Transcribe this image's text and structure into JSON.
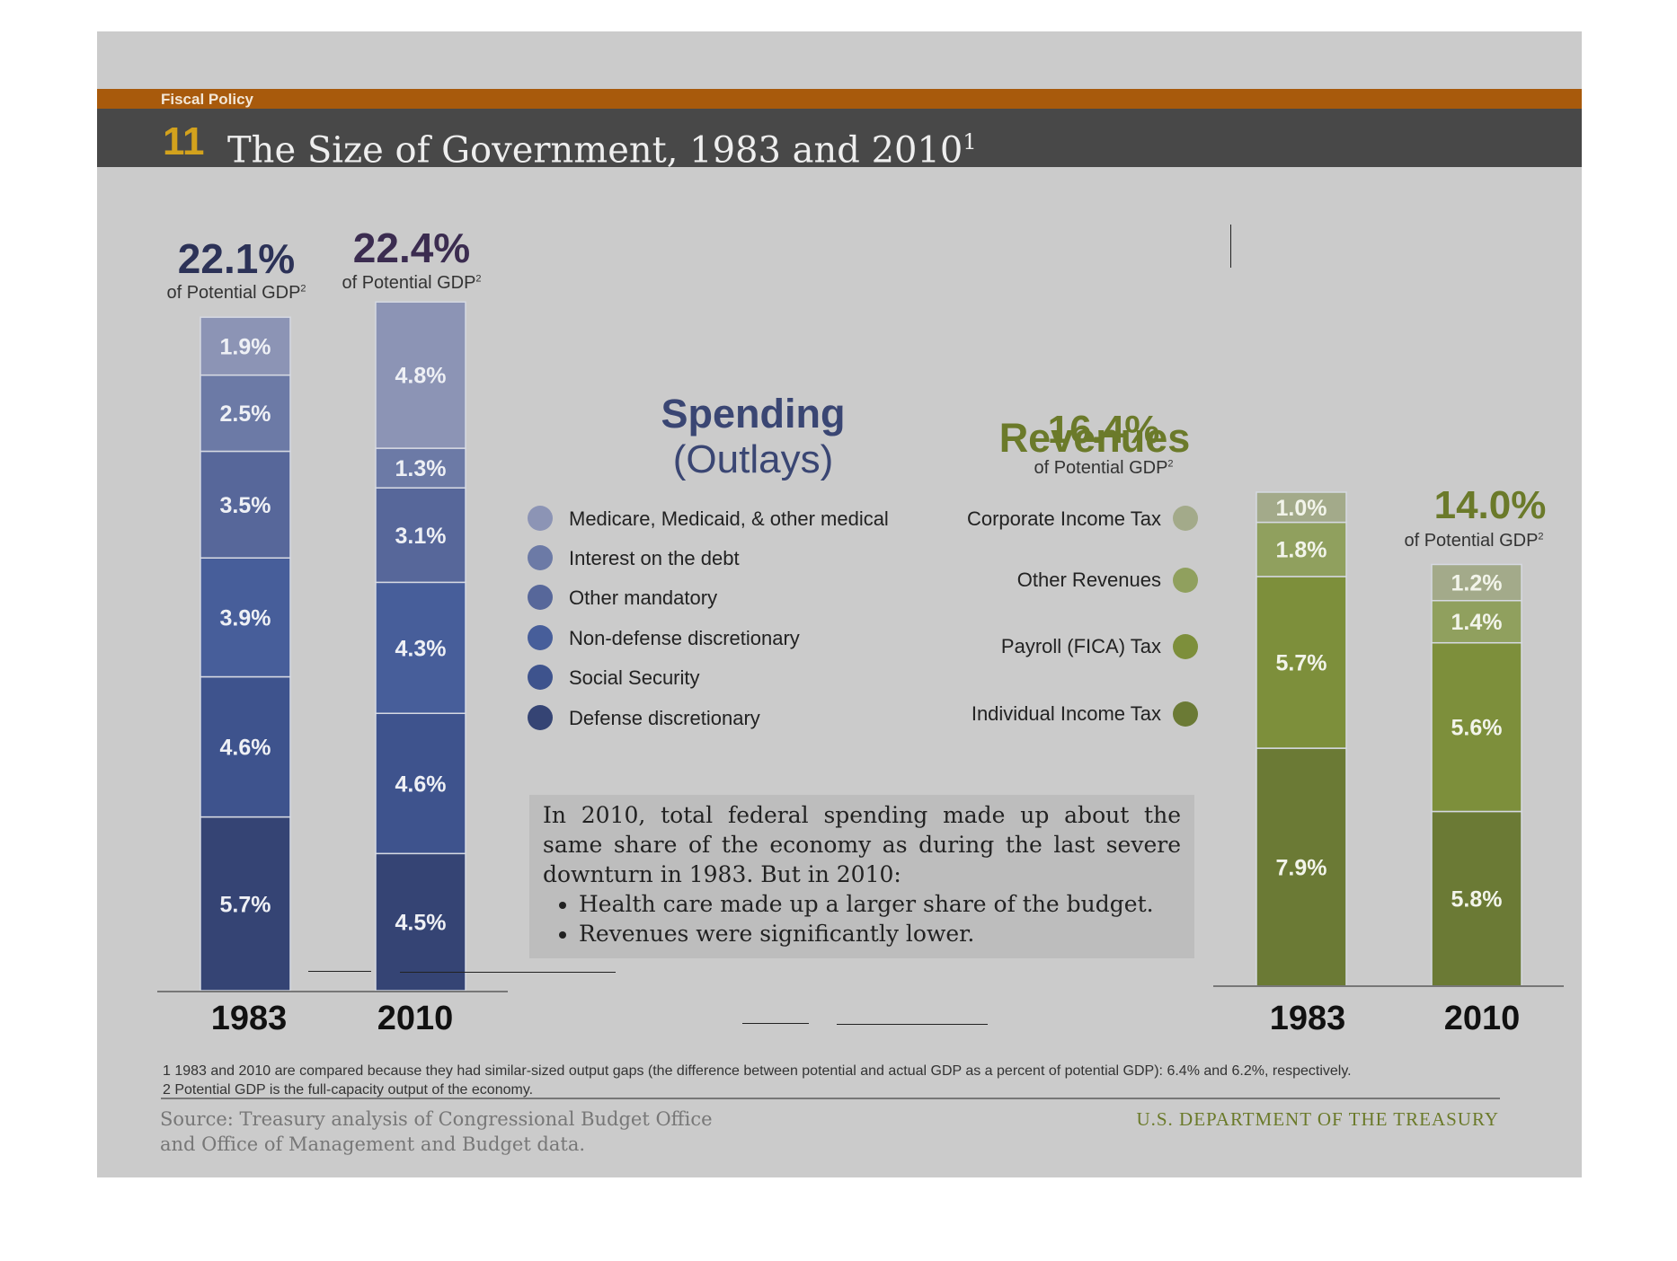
{
  "header": {
    "section": "Fiscal Policy",
    "number": "11",
    "title": "The Size of Government, 1983 and 2010",
    "title_note": "1"
  },
  "colors": {
    "header_band": "#a85a0c",
    "title_band": "#484848",
    "accent_number": "#d3a21d",
    "spending": [
      "#354474",
      "#3e538d",
      "#475e9a",
      "#57679a",
      "#6c7aa6",
      "#8c94b5"
    ],
    "revenues": [
      "#6b7a35",
      "#7d8f3b",
      "#90a05e",
      "#a3aa8a"
    ]
  },
  "spending": {
    "heading_line1": "Spending",
    "heading_line2": "(Outlays)",
    "legend": [
      "Medicare, Medicaid, & other medical",
      "Interest on the debt",
      "Other mandatory",
      "Non-defense discretionary",
      "Social Security",
      "Defense discretionary"
    ],
    "bars": [
      {
        "year": "1983",
        "total": "22.1%",
        "total_sub": "of Potential GDP",
        "sup": "2",
        "labels": [
          "5.7%",
          "4.6%",
          "3.9%",
          "3.5%",
          "2.5%",
          "1.9%"
        ]
      },
      {
        "year": "2010",
        "total": "22.4%",
        "total_sub": "of Potential GDP",
        "sup": "2",
        "labels": [
          "4.5%",
          "4.6%",
          "4.3%",
          "3.1%",
          "1.3%",
          "4.8%"
        ]
      }
    ]
  },
  "revenues": {
    "heading": "Revenues",
    "legend": [
      "Corporate Income Tax",
      "Other Revenues",
      "Payroll (FICA) Tax",
      "Individual Income Tax"
    ],
    "bars": [
      {
        "year": "1983",
        "total": "16.4%",
        "total_sub": "of Potential GDP",
        "sup": "2",
        "labels": [
          "7.9%",
          "5.7%",
          "1.8%",
          "1.0%"
        ]
      },
      {
        "year": "2010",
        "total": "14.0%",
        "total_sub": "of Potential GDP",
        "sup": "2",
        "labels": [
          "5.8%",
          "5.6%",
          "1.4%",
          "1.2%"
        ]
      }
    ]
  },
  "chart_data": {
    "type": "bar",
    "stacked": true,
    "title": "The Size of Government, 1983 and 2010",
    "unit": "% of Potential GDP",
    "charts": [
      {
        "name": "Spending (Outlays)",
        "categories": [
          "1983",
          "2010"
        ],
        "totals": [
          22.1,
          22.4
        ],
        "series": [
          {
            "name": "Defense discretionary",
            "values": [
              5.7,
              4.5
            ]
          },
          {
            "name": "Social Security",
            "values": [
              4.6,
              4.6
            ]
          },
          {
            "name": "Non-defense discretionary",
            "values": [
              3.9,
              4.3
            ]
          },
          {
            "name": "Other mandatory",
            "values": [
              3.5,
              3.1
            ]
          },
          {
            "name": "Interest on the debt",
            "values": [
              2.5,
              1.3
            ]
          },
          {
            "name": "Medicare, Medicaid, & other medical",
            "values": [
              1.9,
              4.8
            ]
          }
        ]
      },
      {
        "name": "Revenues",
        "categories": [
          "1983",
          "2010"
        ],
        "totals": [
          16.4,
          14.0
        ],
        "series": [
          {
            "name": "Individual Income Tax",
            "values": [
              7.9,
              5.8
            ]
          },
          {
            "name": "Payroll (FICA) Tax",
            "values": [
              5.7,
              5.6
            ]
          },
          {
            "name": "Other Revenues",
            "values": [
              1.8,
              1.4
            ]
          },
          {
            "name": "Corporate Income Tax",
            "values": [
              1.0,
              1.2
            ]
          }
        ]
      }
    ]
  },
  "note": {
    "paragraph": "In 2010, total federal spending made up about the same share of the economy as during the last severe downturn in 1983. But in 2010:",
    "bullets": [
      "Health care made up a larger share of the budget.",
      "Revenues were significantly lower."
    ]
  },
  "footnotes": [
    "1 1983 and 2010 are compared because they had similar-sized output gaps (the difference between potential and actual GDP as a percent of potential GDP): 6.4% and 6.2%, respectively.",
    "2 Potential GDP is the full-capacity output of the economy."
  ],
  "source": {
    "line1": "Source: Treasury analysis of Congressional Budget Office",
    "line2": "and Office of Management and Budget data."
  },
  "department": "U.S. DEPARTMENT OF THE TREASURY"
}
